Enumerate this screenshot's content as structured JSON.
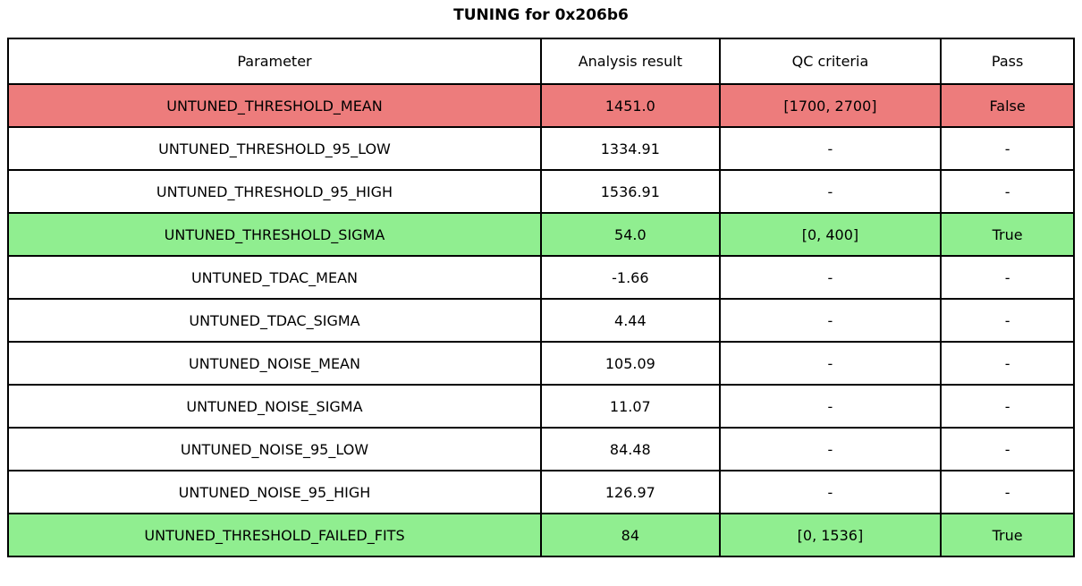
{
  "title": "TUNING for 0x206b6",
  "chart_data": {
    "type": "table",
    "title": "TUNING for 0x206b6",
    "columns": [
      "Parameter",
      "Analysis result",
      "QC criteria",
      "Pass"
    ],
    "rows": [
      {
        "parameter": "UNTUNED_THRESHOLD_MEAN",
        "result": "1451.0",
        "qc": "[1700, 2700]",
        "pass": "False",
        "status": "fail"
      },
      {
        "parameter": "UNTUNED_THRESHOLD_95_LOW",
        "result": "1334.91",
        "qc": "-",
        "pass": "-",
        "status": "none"
      },
      {
        "parameter": "UNTUNED_THRESHOLD_95_HIGH",
        "result": "1536.91",
        "qc": "-",
        "pass": "-",
        "status": "none"
      },
      {
        "parameter": "UNTUNED_THRESHOLD_SIGMA",
        "result": "54.0",
        "qc": "[0, 400]",
        "pass": "True",
        "status": "pass"
      },
      {
        "parameter": "UNTUNED_TDAC_MEAN",
        "result": "-1.66",
        "qc": "-",
        "pass": "-",
        "status": "none"
      },
      {
        "parameter": "UNTUNED_TDAC_SIGMA",
        "result": "4.44",
        "qc": "-",
        "pass": "-",
        "status": "none"
      },
      {
        "parameter": "UNTUNED_NOISE_MEAN",
        "result": "105.09",
        "qc": "-",
        "pass": "-",
        "status": "none"
      },
      {
        "parameter": "UNTUNED_NOISE_SIGMA",
        "result": "11.07",
        "qc": "-",
        "pass": "-",
        "status": "none"
      },
      {
        "parameter": "UNTUNED_NOISE_95_LOW",
        "result": "84.48",
        "qc": "-",
        "pass": "-",
        "status": "none"
      },
      {
        "parameter": "UNTUNED_NOISE_95_HIGH",
        "result": "126.97",
        "qc": "-",
        "pass": "-",
        "status": "none"
      },
      {
        "parameter": "UNTUNED_THRESHOLD_FAILED_FITS",
        "result": "84",
        "qc": "[0, 1536]",
        "pass": "True",
        "status": "pass"
      }
    ],
    "layout": {
      "grid": true,
      "header_background": "#FFFFFF",
      "row_highlighting": "by pass/fail status"
    }
  },
  "colors": {
    "fail_row": "#ED7C7C",
    "pass_row": "#90EE90",
    "border": "#000000",
    "background": "#FFFFFF",
    "text": "#000000"
  }
}
